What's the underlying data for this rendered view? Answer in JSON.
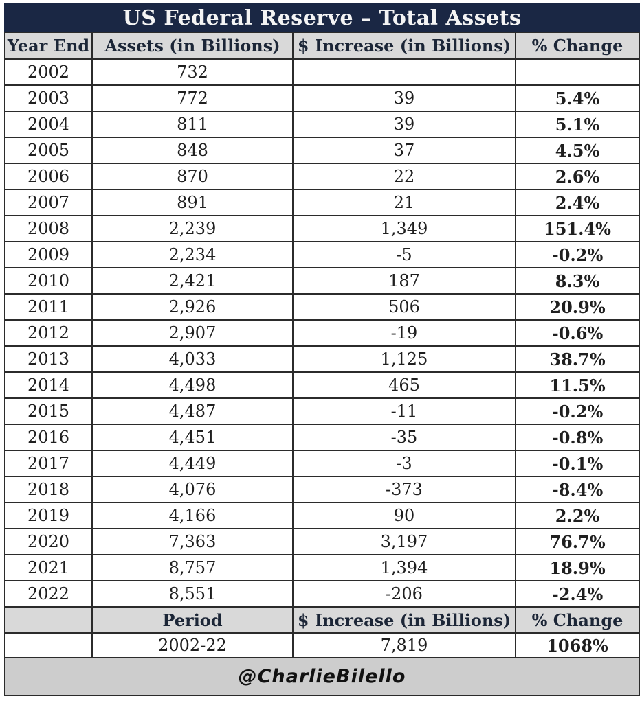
{
  "title": "US Federal Reserve – Total Assets",
  "columns": [
    "Year End",
    "Assets (in Billions)",
    "$ Increase (in Billions)",
    "% Change"
  ],
  "rows": [
    {
      "year": "2002",
      "assets": "732",
      "increase": "",
      "change": "",
      "change_type": "none"
    },
    {
      "year": "2003",
      "assets": "772",
      "increase": "39",
      "change": "5.4%",
      "change_type": "pos"
    },
    {
      "year": "2004",
      "assets": "811",
      "increase": "39",
      "change": "5.1%",
      "change_type": "pos"
    },
    {
      "year": "2005",
      "assets": "848",
      "increase": "37",
      "change": "4.5%",
      "change_type": "pos"
    },
    {
      "year": "2006",
      "assets": "870",
      "increase": "22",
      "change": "2.6%",
      "change_type": "pos"
    },
    {
      "year": "2007",
      "assets": "891",
      "increase": "21",
      "change": "2.4%",
      "change_type": "pos"
    },
    {
      "year": "2008",
      "assets": "2,239",
      "increase": "1,349",
      "change": "151.4%",
      "change_type": "pos"
    },
    {
      "year": "2009",
      "assets": "2,234",
      "increase": "-5",
      "change": "-0.2%",
      "change_type": "neg"
    },
    {
      "year": "2010",
      "assets": "2,421",
      "increase": "187",
      "change": "8.3%",
      "change_type": "pos"
    },
    {
      "year": "2011",
      "assets": "2,926",
      "increase": "506",
      "change": "20.9%",
      "change_type": "pos"
    },
    {
      "year": "2012",
      "assets": "2,907",
      "increase": "-19",
      "change": "-0.6%",
      "change_type": "neg"
    },
    {
      "year": "2013",
      "assets": "4,033",
      "increase": "1,125",
      "change": "38.7%",
      "change_type": "pos"
    },
    {
      "year": "2014",
      "assets": "4,498",
      "increase": "465",
      "change": "11.5%",
      "change_type": "pos"
    },
    {
      "year": "2015",
      "assets": "4,487",
      "increase": "-11",
      "change": "-0.2%",
      "change_type": "neg"
    },
    {
      "year": "2016",
      "assets": "4,451",
      "increase": "-35",
      "change": "-0.8%",
      "change_type": "neg"
    },
    {
      "year": "2017",
      "assets": "4,449",
      "increase": "-3",
      "change": "-0.1%",
      "change_type": "neg"
    },
    {
      "year": "2018",
      "assets": "4,076",
      "increase": "-373",
      "change": "-8.4%",
      "change_type": "neg"
    },
    {
      "year": "2019",
      "assets": "4,166",
      "increase": "90",
      "change": "2.2%",
      "change_type": "pos"
    },
    {
      "year": "2020",
      "assets": "7,363",
      "increase": "3,197",
      "change": "76.7%",
      "change_type": "pos"
    },
    {
      "year": "2021",
      "assets": "8,757",
      "increase": "1,394",
      "change": "18.9%",
      "change_type": "pos"
    },
    {
      "year": "2022",
      "assets": "8,551",
      "increase": "-206",
      "change": "-2.4%",
      "change_type": "neg"
    }
  ],
  "summary": {
    "period_label": "Period",
    "increase_label": "$ Increase (in Billions)",
    "change_label": "% Change",
    "period_value": "2002-22",
    "increase_value": "7,819",
    "change_value": "1068%",
    "change_type": "pos"
  },
  "footer": "@CharlieBilello",
  "colors": {
    "title_bg": "#1a2744",
    "title_text": "#f4f4f4",
    "header_bg": "#d9d9d9",
    "header_text": "#1c2637",
    "positive_bg": "#d7ecd6",
    "positive_text": "#3f8a4a",
    "negative_bg": "#f5c9ce",
    "negative_text": "#a93a48",
    "footer_bg": "#cdcdcd",
    "border": "#2b2b2b"
  },
  "chart_data": {
    "type": "table",
    "title": "US Federal Reserve – Total Assets",
    "columns": [
      "Year End",
      "Assets (in Billions)",
      "$ Increase (in Billions)",
      "% Change"
    ],
    "years": [
      2002,
      2003,
      2004,
      2005,
      2006,
      2007,
      2008,
      2009,
      2010,
      2011,
      2012,
      2013,
      2014,
      2015,
      2016,
      2017,
      2018,
      2019,
      2020,
      2021,
      2022
    ],
    "assets_billions": [
      732,
      772,
      811,
      848,
      870,
      891,
      2239,
      2234,
      2421,
      2926,
      2907,
      4033,
      4498,
      4487,
      4451,
      4449,
      4076,
      4166,
      7363,
      8757,
      8551
    ],
    "dollar_increase_billions": [
      null,
      39,
      39,
      37,
      22,
      21,
      1349,
      -5,
      187,
      506,
      -19,
      1125,
      465,
      -11,
      -35,
      -3,
      -373,
      90,
      3197,
      1394,
      -206
    ],
    "pct_change": [
      null,
      5.4,
      5.1,
      4.5,
      2.6,
      2.4,
      151.4,
      -0.2,
      8.3,
      20.9,
      -0.6,
      38.7,
      11.5,
      -0.2,
      -0.8,
      -0.1,
      -8.4,
      2.2,
      76.7,
      18.9,
      -2.4
    ],
    "total": {
      "period": "2002-22",
      "dollar_increase_billions": 7819,
      "pct_change": 1068
    },
    "source_attribution": "@CharlieBilello"
  }
}
